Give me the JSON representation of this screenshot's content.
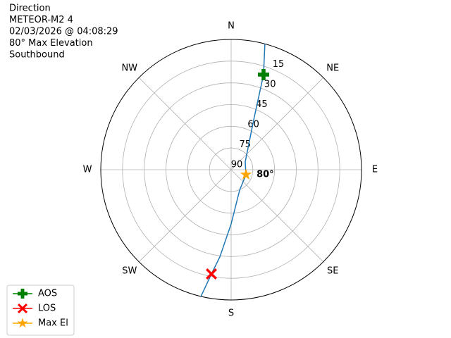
{
  "chart_data": {
    "type": "polar",
    "title_lines": [
      "Direction",
      "METEOR-M2 4",
      "02/03/2026 @ 04:08:29",
      "80° Max Elevation",
      "Southbound"
    ],
    "ylim": [
      90,
      0
    ],
    "yticks": [
      15,
      30,
      45,
      60,
      75,
      90
    ],
    "xlim": [
      0,
      360
    ],
    "xticks": [
      {
        "value": 0,
        "label": "N"
      },
      {
        "value": 45,
        "label": "NE"
      },
      {
        "value": 90,
        "label": "E"
      },
      {
        "value": 135,
        "label": "SE"
      },
      {
        "value": 180,
        "label": "S"
      },
      {
        "value": 225,
        "label": "SW"
      },
      {
        "value": 270,
        "label": "W"
      },
      {
        "value": 315,
        "label": "NW"
      }
    ],
    "grid": true,
    "legend": "lower left",
    "series": [
      {
        "color": "#1f77b4",
        "x": [
          15,
          18.8,
          24.3,
          61,
          108.4,
          157.5,
          180,
          187.4,
          190.7,
          193.4
        ],
        "values": [
          0,
          20.6,
          52.1,
          78.9,
          79.2,
          74.7,
          52.5,
          29.2,
          16.7,
          0
        ]
      },
      {
        "name": "AOS",
        "color": "#008000",
        "marker": "plus",
        "x": [
          18.8
        ],
        "values": [
          20.6
        ]
      },
      {
        "name": "LOS",
        "color": "#ff0000",
        "marker": "x",
        "x": [
          190.7
        ],
        "values": [
          16.7
        ]
      },
      {
        "name": "Max El",
        "color": "#ffa500",
        "marker": "star",
        "x": [
          108.4
        ],
        "values": [
          79.2
        ]
      }
    ],
    "annotations": [
      {
        "text": "80°",
        "x": 108.4,
        "y": 79.2
      }
    ]
  }
}
